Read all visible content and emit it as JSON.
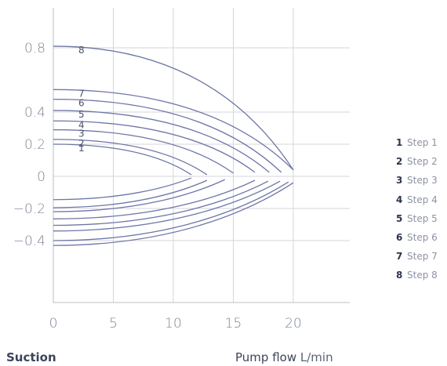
{
  "footer": {
    "left_label": "Suction",
    "right_label": "Pump flow",
    "unit": "L/min"
  },
  "legend": [
    {
      "num": "1",
      "label": "Step 1"
    },
    {
      "num": "2",
      "label": "Step 2"
    },
    {
      "num": "3",
      "label": "Step 3"
    },
    {
      "num": "4",
      "label": "Step 4"
    },
    {
      "num": "5",
      "label": "Step 5"
    },
    {
      "num": "6",
      "label": "Step 6"
    },
    {
      "num": "7",
      "label": "Step 7"
    },
    {
      "num": "8",
      "label": "Step 8"
    }
  ],
  "chart_data": {
    "type": "line",
    "title": "",
    "xlabel": "Pump flow L/min",
    "ylabel": "",
    "xlim": [
      0,
      25
    ],
    "ylim": [
      -0.6,
      0.96
    ],
    "x_ticks": [
      0,
      5,
      10,
      15,
      20
    ],
    "y_ticks": [
      {
        "value": 0.8,
        "label": "0.8"
      },
      {
        "value": 0.4,
        "label": "0.4"
      },
      {
        "value": 0.2,
        "label": "0.2"
      },
      {
        "value": 0,
        "label": "0"
      },
      {
        "value": -0.2,
        "label": "−0.2"
      },
      {
        "value": -0.4,
        "label": "−0.4"
      }
    ],
    "grid": true,
    "legend_position": "right",
    "series": [
      {
        "name": "1",
        "upper": {
          "start": 0.2,
          "end_x": 11.5,
          "end_y": 0.01
        },
        "lower": {
          "start": -0.145,
          "end_x": 11.5,
          "end_y": -0.01
        }
      },
      {
        "name": "2",
        "upper": {
          "start": 0.23,
          "end_x": 12.8,
          "end_y": 0.01
        },
        "lower": {
          "start": -0.195,
          "end_x": 12.8,
          "end_y": -0.025
        }
      },
      {
        "name": "3",
        "upper": {
          "start": 0.29,
          "end_x": 15.0,
          "end_y": 0.02
        },
        "lower": {
          "start": -0.22,
          "end_x": 14.3,
          "end_y": -0.02
        }
      },
      {
        "name": "4",
        "upper": {
          "start": 0.345,
          "end_x": 16.8,
          "end_y": 0.025
        },
        "lower": {
          "start": -0.265,
          "end_x": 16.8,
          "end_y": -0.025
        }
      },
      {
        "name": "5",
        "upper": {
          "start": 0.41,
          "end_x": 18.0,
          "end_y": 0.025
        },
        "lower": {
          "start": -0.305,
          "end_x": 17.9,
          "end_y": -0.03
        }
      },
      {
        "name": "6",
        "upper": {
          "start": 0.48,
          "end_x": 19.0,
          "end_y": 0.025
        },
        "lower": {
          "start": -0.34,
          "end_x": 18.9,
          "end_y": -0.03
        }
      },
      {
        "name": "7",
        "upper": {
          "start": 0.54,
          "end_x": 20.0,
          "end_y": 0.04
        },
        "lower": {
          "start": -0.4,
          "end_x": 19.6,
          "end_y": -0.035
        }
      },
      {
        "name": "8",
        "upper": {
          "start": 0.81,
          "end_x": 20.0,
          "end_y": 0.04
        },
        "lower": {
          "start": -0.43,
          "end_x": 20.0,
          "end_y": -0.04
        }
      }
    ]
  }
}
